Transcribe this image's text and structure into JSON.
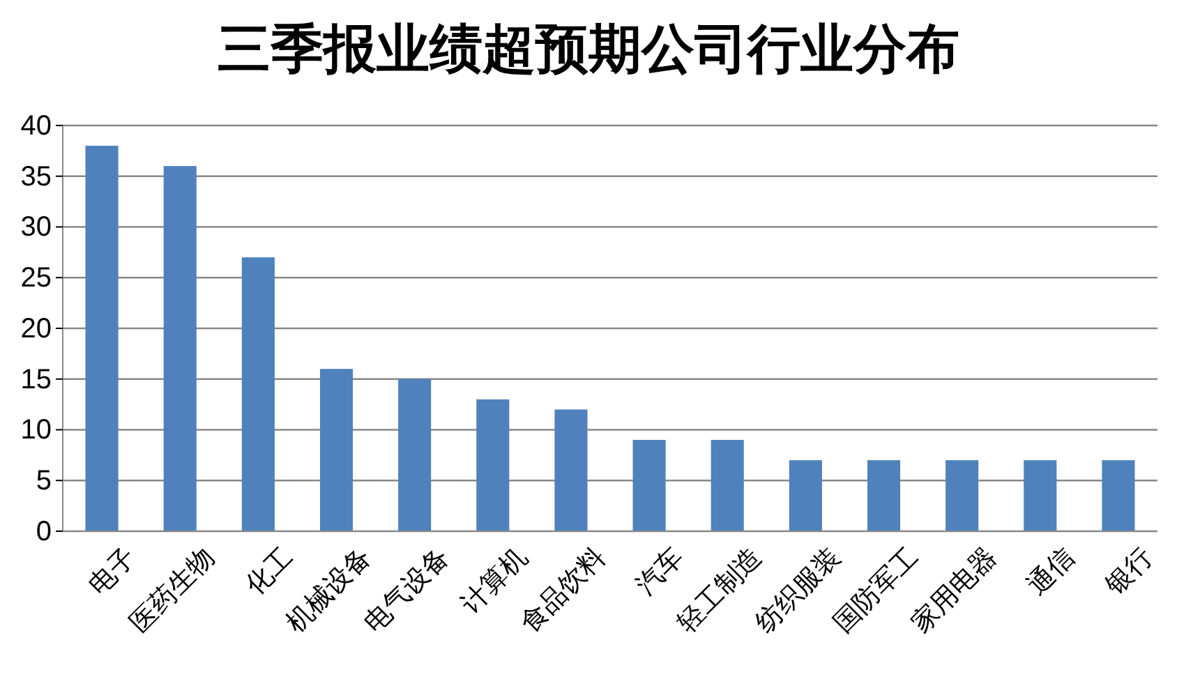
{
  "chart_data": {
    "type": "bar",
    "title": "三季报业绩超预期公司行业分布",
    "categories": [
      "电子",
      "医药生物",
      "化工",
      "机械设备",
      "电气设备",
      "计算机",
      "食品饮料",
      "汽车",
      "轻工制造",
      "纺织服装",
      "国防军工",
      "家用电器",
      "通信",
      "银行"
    ],
    "values": [
      38,
      36,
      27,
      16,
      15,
      13,
      12,
      9,
      9,
      7,
      7,
      7,
      7,
      7
    ],
    "color": "#4f81bd",
    "ylim": [
      0,
      40
    ],
    "yticks": [
      0,
      5,
      10,
      15,
      20,
      25,
      30,
      35,
      40
    ],
    "grid": "y"
  }
}
